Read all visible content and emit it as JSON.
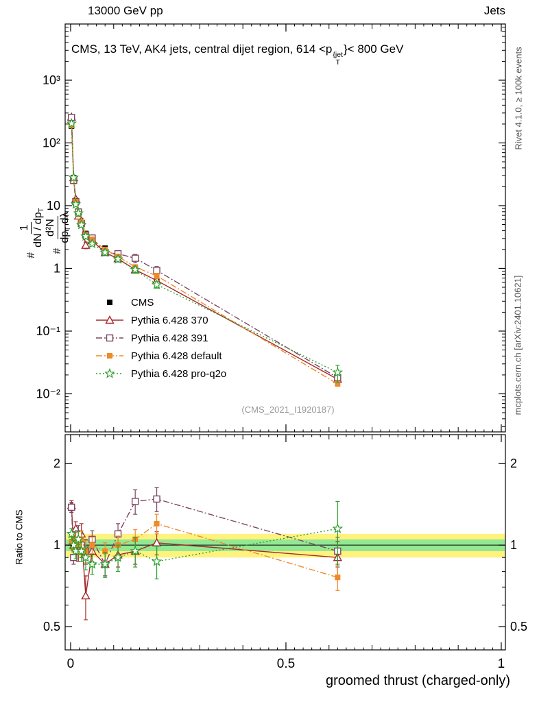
{
  "header": {
    "left": "13000 GeV pp",
    "right": "Jets"
  },
  "title": {
    "pre": "CMS, 13 TeV, AK4 jets, central dijet region, 614 <p",
    "sup": "{jet",
    "sub": "T",
    "post": "}< 800 GeV"
  },
  "ylabel_main": {
    "hash1": "#",
    "num1": "1",
    "den1_main": "dN / dp",
    "den1_sub": "T",
    "hash2": "#",
    "num2": "d²N",
    "den2_main": "dp",
    "den2_sub": "T",
    "den2_post": " dλ"
  },
  "ylabel_ratio": "Ratio to CMS",
  "xlabel": "groomed thrust (charged-only)",
  "watermark": "(CMS_2021_I1920187)",
  "sidebar": {
    "top": "Rivet 4.1.0, ≥ 100k events",
    "bottom": "mcplots.cern.ch [arXiv:2401.10621]"
  },
  "chart_data": {
    "type": "line",
    "title": "CMS, 13 TeV, AK4 jets, central dijet region, 614 < pT^{jet} < 800 GeV",
    "xlabel": "groomed thrust (charged-only)",
    "ylabel_main": "1/(dN/dpT) d²N/(dpT dλ)",
    "ylabel_ratio": "Ratio to CMS",
    "xlim": [
      -0.0127,
      1.0096
    ],
    "x": [
      0.002,
      0.007,
      0.012,
      0.018,
      0.025,
      0.035,
      0.05,
      0.08,
      0.11,
      0.15,
      0.2,
      0.62
    ],
    "xticks": [
      {
        "v": 0,
        "label": "0"
      },
      {
        "v": 0.5,
        "label": "0.5"
      },
      {
        "v": 1,
        "label": "1"
      }
    ],
    "main": {
      "scale": "log",
      "ylog_min": -2.607,
      "ylog_max": 3.896,
      "yticks": [
        {
          "v": 1000,
          "label": "10³"
        },
        {
          "v": 100,
          "label": "10²"
        },
        {
          "v": 10,
          "label": "10"
        },
        {
          "v": 1,
          "label": "1"
        },
        {
          "v": 0.1,
          "label": "10⁻¹"
        },
        {
          "v": 0.01,
          "label": "10⁻²"
        }
      ],
      "series": [
        {
          "name": "CMS",
          "color": "#000000",
          "marker": "square",
          "line": "none",
          "values": [
            185,
            28,
            11,
            7.2,
            5.2,
            3.6,
            2.9,
            2.1,
            1.55,
            1.0,
            0.63,
            0.019
          ],
          "err_frac": [
            0.05,
            0.03,
            0.03,
            0.03,
            0.04,
            0.04,
            0.04,
            0.05,
            0.05,
            0.06,
            0.08,
            0.12
          ]
        },
        {
          "name": "Pythia 6.428 370",
          "color": "#a5292d",
          "marker": "triangle-open",
          "line": "solid",
          "values": [
            259,
            28,
            12.7,
            6.84,
            5.72,
            2.34,
            2.76,
            1.79,
            1.43,
            0.95,
            0.64,
            0.0171
          ],
          "ratio": [
            1.4,
            1.0,
            1.15,
            0.95,
            1.1,
            0.65,
            0.95,
            0.85,
            0.92,
            0.95,
            1.02,
            0.9
          ],
          "ratio_err": [
            0.06,
            0.05,
            0.07,
            0.08,
            0.1,
            0.12,
            0.08,
            0.08,
            0.09,
            0.1,
            0.1,
            0.13
          ]
        },
        {
          "name": "Pythia 6.428 391",
          "color": "#7b4560",
          "marker": "square-open",
          "line": "dashdot",
          "values": [
            255,
            25.2,
            11.6,
            7.92,
            5.2,
            3.42,
            3.05,
            1.79,
            1.71,
            1.45,
            0.93,
            0.0181
          ],
          "ratio": [
            1.38,
            0.9,
            1.05,
            1.1,
            1.0,
            0.95,
            1.05,
            0.85,
            1.1,
            1.45,
            1.48,
            0.95
          ],
          "ratio_err": [
            0.06,
            0.05,
            0.07,
            0.08,
            0.1,
            0.1,
            0.08,
            0.08,
            0.1,
            0.15,
            0.15,
            0.12
          ]
        },
        {
          "name": "Pythia 6.428 default",
          "color": "#ef8a2a",
          "marker": "square",
          "line": "dashdot",
          "values": [
            189,
            27.4,
            11.6,
            7.2,
            5.46,
            3.42,
            2.9,
            2.0,
            1.55,
            1.05,
            0.76,
            0.0144
          ],
          "ratio": [
            1.02,
            0.98,
            1.05,
            1.0,
            1.05,
            0.95,
            1.0,
            0.95,
            1.0,
            1.05,
            1.2,
            0.76
          ],
          "ratio_err": [
            0.05,
            0.04,
            0.06,
            0.07,
            0.08,
            0.09,
            0.07,
            0.07,
            0.08,
            0.09,
            0.1,
            0.08
          ]
        },
        {
          "name": "Pythia 6.428 pro-q2o",
          "color": "#2ca02c",
          "marker": "star-open",
          "line": "dotted",
          "values": [
            204,
            28,
            10.5,
            7.56,
            4.94,
            3.24,
            2.47,
            1.79,
            1.4,
            0.95,
            0.55,
            0.0219
          ],
          "ratio": [
            1.1,
            1.0,
            0.95,
            1.05,
            0.95,
            0.9,
            0.85,
            0.85,
            0.9,
            0.95,
            0.87,
            1.15
          ],
          "ratio_err": [
            0.05,
            0.04,
            0.06,
            0.07,
            0.08,
            0.09,
            0.07,
            0.09,
            0.1,
            0.12,
            0.12,
            0.3
          ]
        }
      ]
    },
    "ratio": {
      "scale": "log",
      "ylog_min": -0.387,
      "ylog_max": 0.408,
      "yticks": [
        {
          "v": 2,
          "label": "2"
        },
        {
          "v": 1,
          "label": "1"
        },
        {
          "v": 0.5,
          "label": "0.5"
        }
      ],
      "minor": [
        0.6,
        0.7,
        0.8,
        0.9
      ],
      "bands": [
        {
          "lo": 0.9,
          "hi": 1.1,
          "color": "#fff27d"
        },
        {
          "lo": 0.95,
          "hi": 1.05,
          "color": "#93e893"
        }
      ],
      "ref_line": 1.0
    }
  }
}
